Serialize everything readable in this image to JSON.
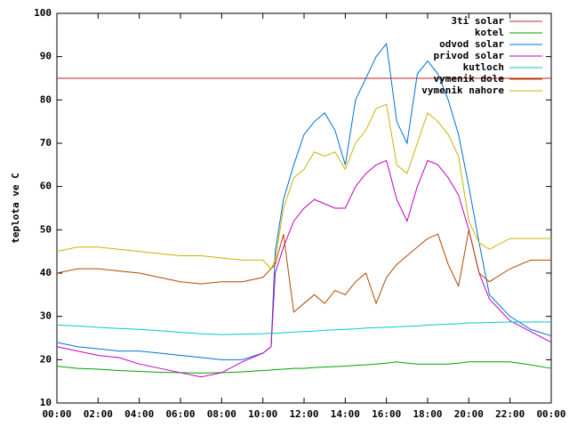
{
  "chart_data": {
    "type": "line",
    "ylabel": "teplota ve C",
    "x": [
      0,
      1,
      2,
      3,
      4,
      5,
      6,
      7,
      8,
      9,
      10,
      10.4,
      10.6,
      11,
      11.5,
      12,
      12.5,
      13,
      13.5,
      14,
      14.5,
      15,
      15.5,
      16,
      16.5,
      17,
      17.5,
      18,
      18.5,
      19,
      19.5,
      20,
      20.5,
      21,
      22,
      23,
      24
    ],
    "xlim": [
      0,
      24
    ],
    "xticks": [
      {
        "value": 0,
        "label": "00:00"
      },
      {
        "value": 2,
        "label": "02:00"
      },
      {
        "value": 4,
        "label": "04:00"
      },
      {
        "value": 6,
        "label": "06:00"
      },
      {
        "value": 8,
        "label": "08:00"
      },
      {
        "value": 10,
        "label": "10:00"
      },
      {
        "value": 12,
        "label": "12:00"
      },
      {
        "value": 14,
        "label": "14:00"
      },
      {
        "value": 16,
        "label": "16:00"
      },
      {
        "value": 18,
        "label": "18:00"
      },
      {
        "value": 20,
        "label": "20:00"
      },
      {
        "value": 22,
        "label": "22:00"
      },
      {
        "value": 24,
        "label": "00:00"
      }
    ],
    "ylim": [
      10,
      100
    ],
    "yticks": [
      10,
      20,
      30,
      40,
      50,
      60,
      70,
      80,
      90,
      100
    ],
    "legend": "top-right",
    "series": [
      {
        "name": "3ti solar",
        "color": "#c02020",
        "values": [
          85,
          85,
          85,
          85,
          85,
          85,
          85,
          85,
          85,
          85,
          85,
          85,
          85,
          85,
          85,
          85,
          85,
          85,
          85,
          85,
          85,
          85,
          85,
          85,
          85,
          85,
          85,
          85,
          85,
          85,
          85,
          85,
          85,
          85,
          85,
          85,
          85
        ]
      },
      {
        "name": "kotel",
        "color": "#00a000",
        "values": [
          18.5,
          18,
          17.8,
          17.5,
          17.3,
          17.1,
          17,
          16.9,
          17,
          17.2,
          17.5,
          17.6,
          17.7,
          17.8,
          18,
          18,
          18.2,
          18.3,
          18.4,
          18.5,
          18.7,
          18.8,
          19,
          19.2,
          19.5,
          19.2,
          19,
          19,
          19,
          19,
          19.2,
          19.5,
          19.5,
          19.5,
          19.5,
          18.8,
          18
        ]
      },
      {
        "name": "odvod solar",
        "color": "#0070d0",
        "values": [
          24,
          23,
          22.5,
          22,
          22,
          21.5,
          21,
          20.5,
          20,
          20,
          21.5,
          23,
          45,
          57,
          65,
          72,
          75,
          77,
          73,
          65,
          80,
          85,
          90,
          93,
          75,
          70,
          86,
          89,
          86,
          80,
          72,
          60,
          47,
          35,
          30,
          27,
          25.5
        ]
      },
      {
        "name": "privod solar",
        "color": "#c000c0",
        "values": [
          23,
          22,
          21,
          20.5,
          19,
          18,
          17,
          16,
          17,
          19.5,
          21.5,
          23,
          40,
          46,
          52,
          55,
          57,
          56,
          55,
          55,
          60,
          63,
          65,
          66,
          57,
          52,
          60,
          66,
          65,
          62,
          58,
          50,
          40,
          34,
          29,
          26.5,
          24
        ]
      },
      {
        "name": "kutloch",
        "color": "#00c8c8",
        "values": [
          28,
          27.8,
          27.5,
          27.2,
          27,
          26.7,
          26.3,
          26,
          25.8,
          25.9,
          26,
          26.1,
          26.1,
          26.2,
          26.4,
          26.5,
          26.6,
          26.8,
          26.9,
          27,
          27.1,
          27.3,
          27.4,
          27.5,
          27.6,
          27.7,
          27.8,
          28,
          28.1,
          28.2,
          28.3,
          28.5,
          28.5,
          28.6,
          28.7,
          28.7,
          28.7
        ]
      },
      {
        "name": "vymenik dole",
        "color": "#b04800",
        "values": [
          40,
          41,
          41,
          40.5,
          40,
          39,
          38,
          37.5,
          38,
          38,
          39,
          41,
          42,
          49,
          31,
          33,
          35,
          33,
          36,
          35,
          38,
          40,
          33,
          39,
          42,
          44,
          46,
          48,
          49,
          42,
          37,
          50,
          40,
          38,
          41,
          43,
          43
        ]
      },
      {
        "name": "vymenik nahore",
        "color": "#c8b400",
        "values": [
          45,
          46,
          46,
          45.5,
          45,
          44.5,
          44,
          44,
          43.5,
          43,
          43,
          41,
          43,
          55,
          62,
          64,
          68,
          67,
          68,
          64,
          70,
          73,
          78,
          79,
          65,
          63,
          70,
          77,
          75,
          72,
          67,
          52,
          47,
          45.5,
          48,
          48,
          48
        ]
      }
    ]
  }
}
